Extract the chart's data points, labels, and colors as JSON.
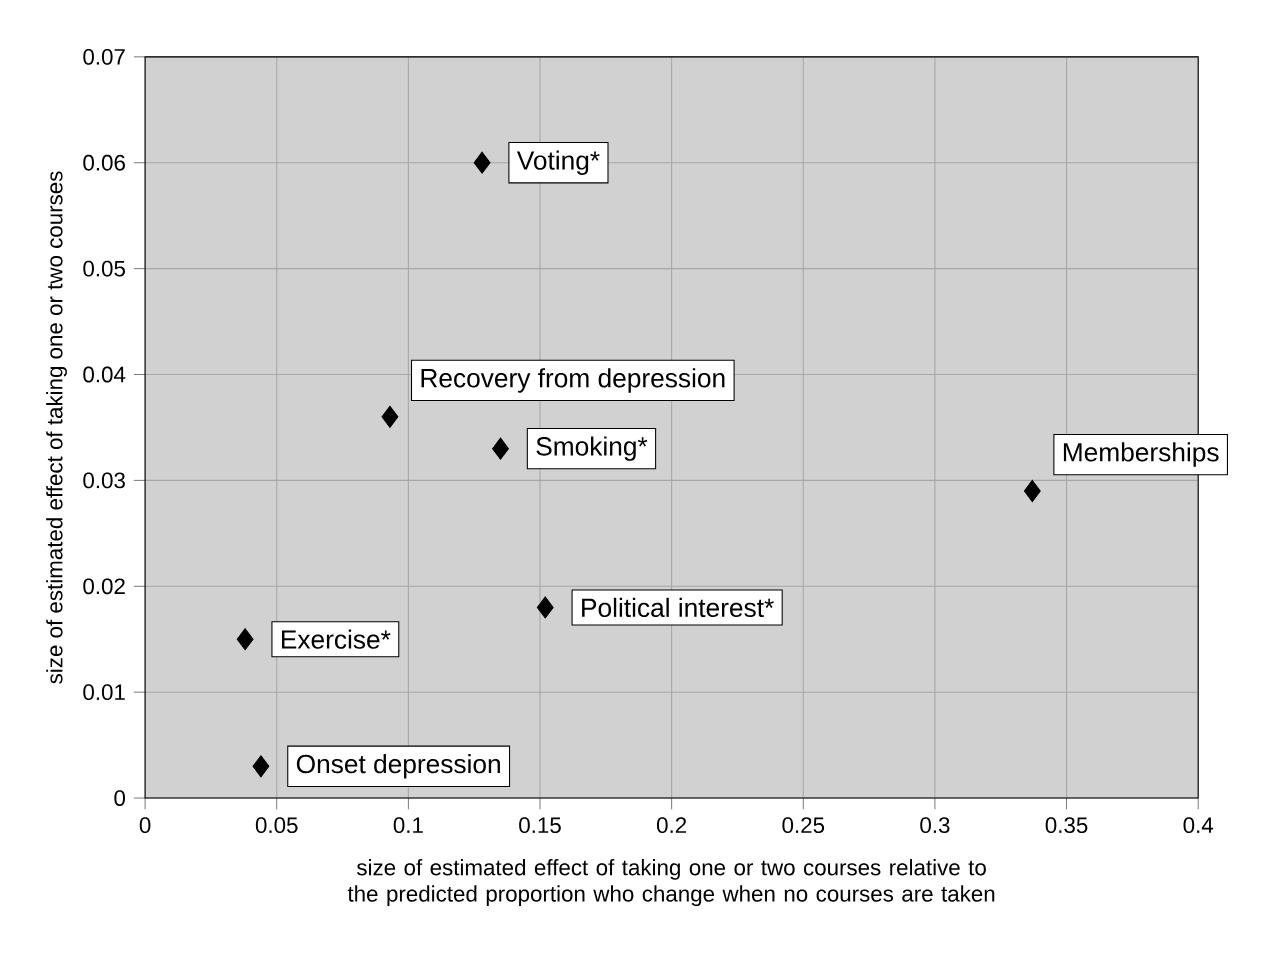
{
  "chart_data": {
    "type": "scatter",
    "xlabel": "size of estimated effect of taking one or two courses relative to the predicted proportion who change when no courses are taken",
    "ylabel": "size of estimated effect of taking one or two courses",
    "x": [
      0.128,
      0.093,
      0.135,
      0.337,
      0.152,
      0.038,
      0.044
    ],
    "values": [
      0.06,
      0.036,
      0.033,
      0.029,
      0.018,
      0.015,
      0.003
    ],
    "color": "#000000",
    "marker": "diamond",
    "grid": true,
    "xlim": [
      0,
      0.4
    ],
    "xticks": [
      0,
      0.05,
      0.1,
      0.15,
      0.2,
      0.25,
      0.3,
      0.35,
      0.4
    ],
    "ylim": [
      0,
      0.07
    ],
    "yticks": [
      0,
      0.01,
      0.02,
      0.03,
      0.04,
      0.05,
      0.06,
      0.07
    ],
    "annotations": [
      {
        "text": "Voting*",
        "x": 0.128,
        "y": 0.06
      },
      {
        "text": "Recovery from depression",
        "x": 0.093,
        "y": 0.036
      },
      {
        "text": "Smoking*",
        "x": 0.135,
        "y": 0.033
      },
      {
        "text": "Memberships",
        "x": 0.337,
        "y": 0.029
      },
      {
        "text": "Political interest*",
        "x": 0.152,
        "y": 0.018
      },
      {
        "text": "Exercise*",
        "x": 0.038,
        "y": 0.015
      },
      {
        "text": "Onset depression",
        "x": 0.044,
        "y": 0.003
      }
    ]
  }
}
